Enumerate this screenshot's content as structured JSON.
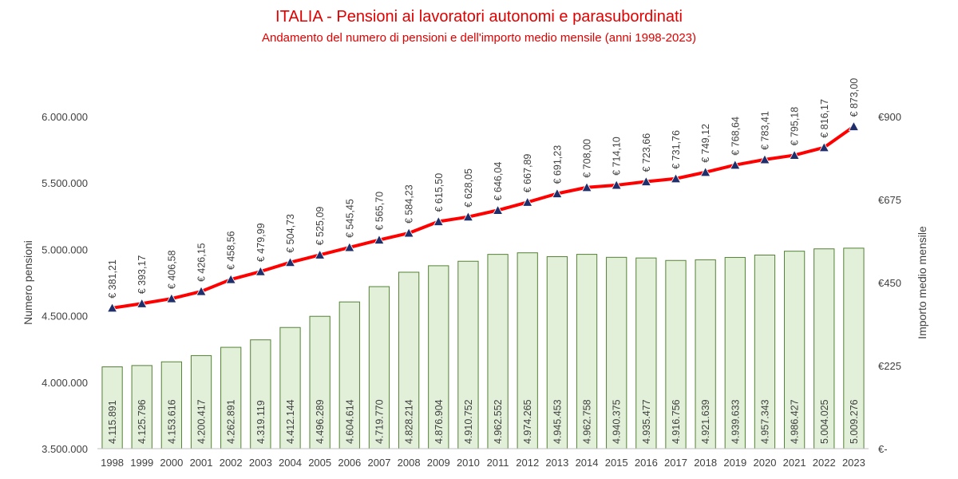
{
  "chart_data": {
    "type": "bar",
    "title": "ITALIA - Pensioni ai lavoratori autonomi e parasubordinati",
    "subtitle": "Andamento del numero di pensioni e dell'importo medio mensile (anni 1998-2023)",
    "ylabel": "Numero pensioni",
    "y2label": "Importo medio mensile",
    "ylim": [
      3500000,
      6000000
    ],
    "y2lim": [
      0,
      900
    ],
    "yticks": [
      "3.500.000",
      "4.000.000",
      "4.500.000",
      "5.000.000",
      "5.500.000",
      "6.000.000"
    ],
    "y2ticks": [
      "€-",
      "€225",
      "€450",
      "€675",
      "€900"
    ],
    "grid": false,
    "colors": {
      "title": "#e00000",
      "bar_fill": "#e2efd9",
      "bar_stroke": "#548235",
      "line": "#ff0000",
      "marker": "#1f2f6b",
      "text": "#404040",
      "axis": "#bfbfbf"
    },
    "categories": [
      "1998",
      "1999",
      "2000",
      "2001",
      "2002",
      "2003",
      "2004",
      "2005",
      "2006",
      "2007",
      "2008",
      "2009",
      "2010",
      "2011",
      "2012",
      "2013",
      "2014",
      "2015",
      "2016",
      "2017",
      "2018",
      "2019",
      "2020",
      "2021",
      "2022",
      "2023"
    ],
    "series": [
      {
        "type": "bar",
        "axis": "left",
        "values": [
          4115891,
          4125796,
          4153616,
          4200417,
          4262891,
          4319119,
          4412144,
          4496289,
          4604614,
          4719770,
          4828214,
          4876904,
          4910752,
          4962552,
          4974265,
          4945453,
          4962758,
          4940375,
          4935477,
          4916756,
          4921639,
          4939633,
          4957343,
          4986427,
          5004025,
          5009276
        ],
        "labels": [
          "4.115.891",
          "4.125.796",
          "4.153.616",
          "4.200.417",
          "4.262.891",
          "4.319.119",
          "4.412.144",
          "4.496.289",
          "4.604.614",
          "4.719.770",
          "4.828.214",
          "4.876.904",
          "4.910.752",
          "4.962.552",
          "4.974.265",
          "4.945.453",
          "4.962.758",
          "4.940.375",
          "4.935.477",
          "4.916.756",
          "4.921.639",
          "4.939.633",
          "4.957.343",
          "4.986.427",
          "5.004.025",
          "5.009.276"
        ]
      },
      {
        "type": "line",
        "axis": "right",
        "values": [
          381.21,
          393.17,
          406.58,
          426.15,
          458.56,
          479.99,
          504.73,
          525.09,
          545.45,
          565.7,
          584.23,
          615.5,
          628.05,
          646.04,
          667.89,
          691.23,
          708.0,
          714.1,
          723.66,
          731.76,
          749.12,
          768.64,
          783.41,
          795.18,
          816.17,
          873.0
        ],
        "labels": [
          "€ 381,21",
          "€ 393,17",
          "€ 406,58",
          "€ 426,15",
          "€ 458,56",
          "€ 479,99",
          "€ 504,73",
          "€ 525,09",
          "€ 545,45",
          "€ 565,70",
          "€ 584,23",
          "€ 615,50",
          "€ 628,05",
          "€ 646,04",
          "€ 667,89",
          "€ 691,23",
          "€ 708,00",
          "€ 714,10",
          "€ 723,66",
          "€ 731,76",
          "€ 749,12",
          "€ 768,64",
          "€ 783,41",
          "€ 795,18",
          "€ 816,17",
          "€ 873,00"
        ]
      }
    ]
  }
}
